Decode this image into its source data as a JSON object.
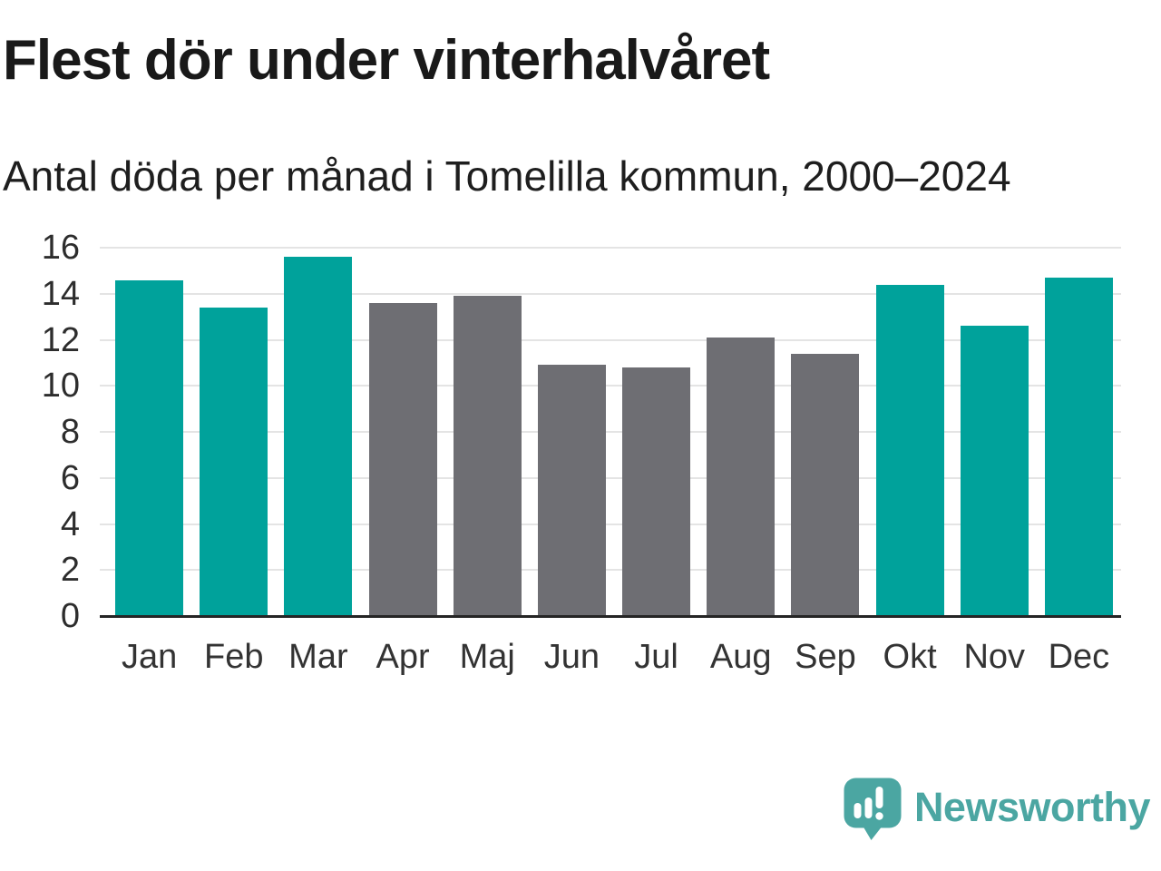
{
  "header": {
    "title": "Flest dör under vinterhalvåret",
    "subtitle": "Antal döda per månad i Tomelilla kommun, 2000–2024"
  },
  "chart_data": {
    "type": "bar",
    "title": "Flest dör under vinterhalvåret",
    "subtitle": "Antal döda per månad i Tomelilla kommun, 2000–2024",
    "categories": [
      "Jan",
      "Feb",
      "Mar",
      "Apr",
      "Maj",
      "Jun",
      "Jul",
      "Aug",
      "Sep",
      "Okt",
      "Nov",
      "Dec"
    ],
    "values": [
      14.6,
      13.4,
      15.6,
      13.6,
      13.9,
      10.9,
      10.8,
      12.1,
      11.4,
      14.4,
      12.6,
      14.7
    ],
    "bar_groups": [
      "winter",
      "winter",
      "winter",
      "summer",
      "summer",
      "summer",
      "summer",
      "summer",
      "summer",
      "winter",
      "winter",
      "winter"
    ],
    "palette": {
      "winter": "#00a29b",
      "summer": "#6e6e73"
    },
    "xlabel": "",
    "ylabel": "",
    "ylim": [
      0,
      16
    ],
    "yticks": [
      0,
      2,
      4,
      6,
      8,
      10,
      12,
      14,
      16
    ],
    "grid": true,
    "legend": false
  },
  "branding": {
    "name": "Newsworthy",
    "icon": "newsworthy-speech-bubble-bar-chart-icon",
    "color": "#4ba6a2"
  },
  "style": {
    "background": "#ffffff",
    "grid_color": "#e4e4e4",
    "baseline_color": "#252525",
    "title_color": "#191919",
    "axis_text_color": "#333333"
  }
}
